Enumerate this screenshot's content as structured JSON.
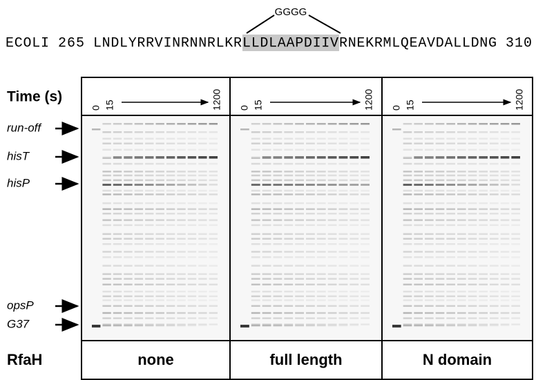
{
  "sequence": {
    "organism": "ECOLI",
    "start": "265",
    "before": "LNDLYRRVINRNNRLKR",
    "highlight": "LLDLAAPDIIV",
    "after": "RNEKRMLQEAVDALLDNG",
    "end": "310",
    "insertion": "GGGG"
  },
  "gel": {
    "time_label": "Time (s)",
    "factor_label": "RfaH",
    "markers": [
      "run-off",
      "hisT",
      "hisP",
      "opsP",
      "G37"
    ],
    "panels": [
      {
        "ticks": [
          "0",
          "15",
          "1200"
        ],
        "condition": "none"
      },
      {
        "ticks": [
          "0",
          "15",
          "1200"
        ],
        "condition": "full length"
      },
      {
        "ticks": [
          "0",
          "15",
          "1200"
        ],
        "condition": "N domain"
      }
    ]
  }
}
